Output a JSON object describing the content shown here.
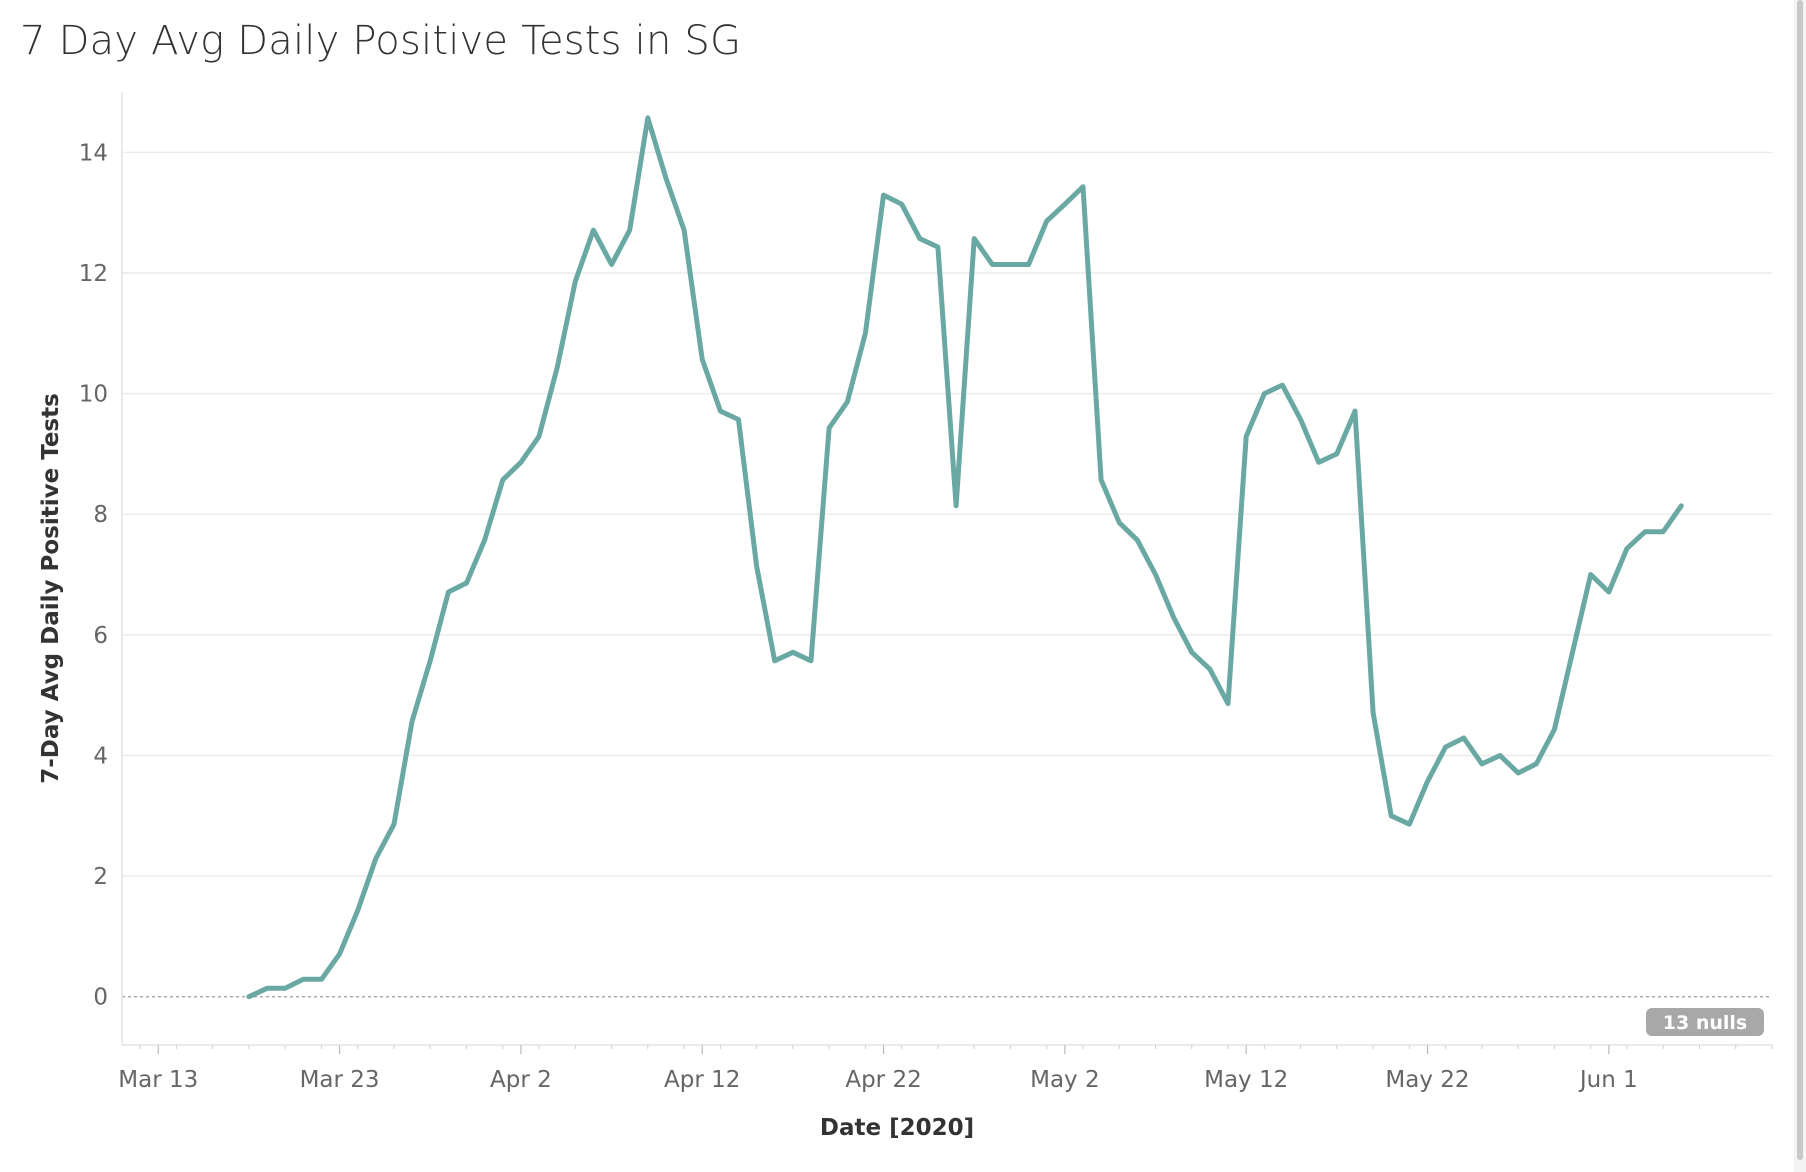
{
  "chart_data": {
    "type": "line",
    "title": "7 Day Avg Daily Positive Tests in SG",
    "xlabel": "Date [2020]",
    "ylabel": "7-Day Avg Daily Positive Tests",
    "ylim": [
      -0.8,
      15
    ],
    "yticks": [
      0,
      2,
      4,
      6,
      8,
      10,
      12,
      14
    ],
    "ytick_labels": [
      "0",
      "2",
      "4",
      "6",
      "8",
      "10",
      "12",
      "14"
    ],
    "xlim": [
      "2020-03-11",
      "2020-06-10"
    ],
    "xticks": [
      "2020-03-13",
      "2020-03-23",
      "2020-04-02",
      "2020-04-12",
      "2020-04-22",
      "2020-05-02",
      "2020-05-12",
      "2020-05-22",
      "2020-06-01"
    ],
    "xtick_labels": [
      "Mar 13",
      "Mar 23",
      "Apr 2",
      "Apr 12",
      "Apr 22",
      "May 2",
      "May 12",
      "May 22",
      "Jun 1"
    ],
    "grid": true,
    "line_color": "#6aa9a3",
    "nulls_label": "13 nulls",
    "series": [
      {
        "dates": [
          "2020-03-18",
          "2020-03-19",
          "2020-03-20",
          "2020-03-21",
          "2020-03-22",
          "2020-03-23",
          "2020-03-24",
          "2020-03-25",
          "2020-03-26",
          "2020-03-27",
          "2020-03-28",
          "2020-03-29",
          "2020-03-30",
          "2020-03-31",
          "2020-04-01",
          "2020-04-02",
          "2020-04-03",
          "2020-04-04",
          "2020-04-05",
          "2020-04-06",
          "2020-04-07",
          "2020-04-08",
          "2020-04-09",
          "2020-04-10",
          "2020-04-11",
          "2020-04-12",
          "2020-04-13",
          "2020-04-14",
          "2020-04-15",
          "2020-04-16",
          "2020-04-17",
          "2020-04-18",
          "2020-04-19",
          "2020-04-20",
          "2020-04-21",
          "2020-04-22",
          "2020-04-23",
          "2020-04-24",
          "2020-04-25",
          "2020-04-26",
          "2020-04-27",
          "2020-04-28",
          "2020-04-29",
          "2020-04-30",
          "2020-05-01",
          "2020-05-02",
          "2020-05-03",
          "2020-05-04",
          "2020-05-05",
          "2020-05-06",
          "2020-05-07",
          "2020-05-08",
          "2020-05-09",
          "2020-05-10",
          "2020-05-11",
          "2020-05-12",
          "2020-05-13",
          "2020-05-14",
          "2020-05-15",
          "2020-05-16",
          "2020-05-17",
          "2020-05-18",
          "2020-05-19",
          "2020-05-20",
          "2020-05-21",
          "2020-05-22",
          "2020-05-23",
          "2020-05-24",
          "2020-05-25",
          "2020-05-26",
          "2020-05-27",
          "2020-05-28",
          "2020-05-29",
          "2020-05-30",
          "2020-05-31",
          "2020-06-01",
          "2020-06-02",
          "2020-06-03",
          "2020-06-04",
          "2020-06-05"
        ],
        "values": [
          0,
          0.14,
          0.14,
          0.29,
          0.29,
          0.71,
          1.43,
          2.29,
          2.86,
          4.57,
          5.57,
          6.71,
          6.86,
          7.57,
          8.57,
          8.86,
          9.29,
          10.43,
          11.86,
          12.71,
          12.14,
          12.71,
          14.57,
          13.57,
          12.71,
          10.57,
          9.71,
          9.57,
          7.14,
          5.57,
          5.71,
          5.57,
          9.43,
          9.86,
          11.0,
          13.29,
          13.14,
          12.57,
          12.43,
          8.14,
          12.57,
          12.14,
          12.14,
          12.14,
          12.86,
          13.14,
          13.43,
          8.57,
          7.86,
          7.57,
          7.0,
          6.29,
          5.71,
          5.43,
          4.86,
          9.29,
          10.0,
          10.14,
          9.57,
          8.86,
          9.0,
          9.71,
          4.71,
          3.0,
          2.86,
          3.57,
          4.14,
          4.29,
          3.86,
          4.0,
          3.71,
          3.86,
          4.43,
          5.71,
          7.0,
          6.71,
          7.43,
          7.71,
          7.71,
          8.14
        ]
      }
    ]
  }
}
